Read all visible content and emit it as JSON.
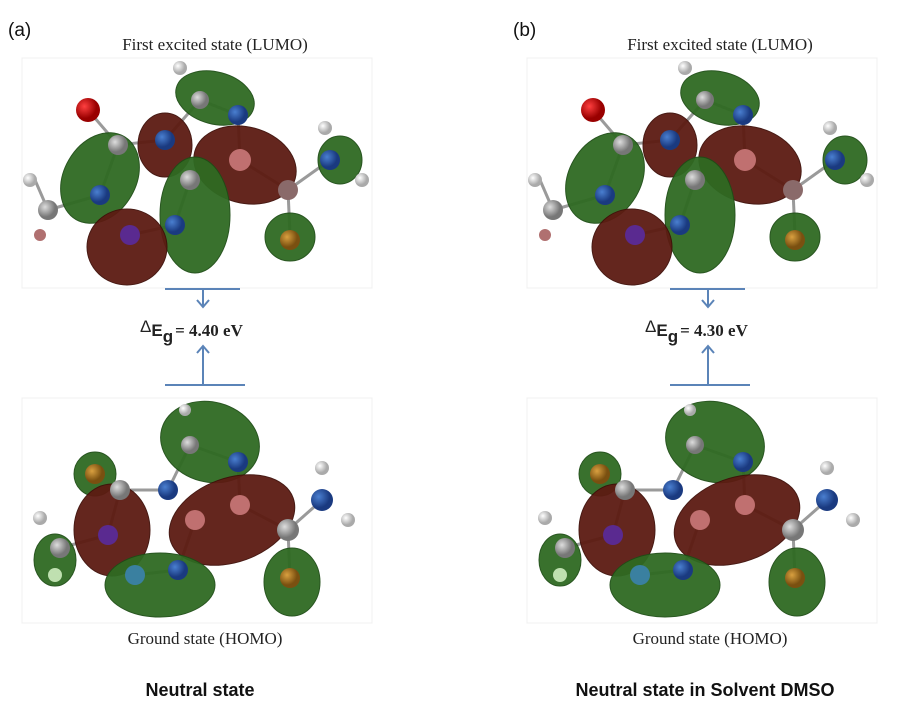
{
  "panels": [
    {
      "label": "(a)",
      "lumo_label": "First excited state (LUMO)",
      "gap_delta": "Δ",
      "gap_symbol": "E",
      "gap_subscript": "g",
      "gap_value": "= 4.40 eV",
      "homo_label": "Ground state (HOMO)",
      "caption": "Neutral state"
    },
    {
      "label": "(b)",
      "lumo_label": "First excited state (LUMO)",
      "gap_delta": "Δ",
      "gap_symbol": "E",
      "gap_subscript": "g",
      "gap_value": "= 4.30 eV",
      "homo_label": "Ground state (HOMO)",
      "caption": "Neutral state in Solvent DMSO"
    }
  ]
}
